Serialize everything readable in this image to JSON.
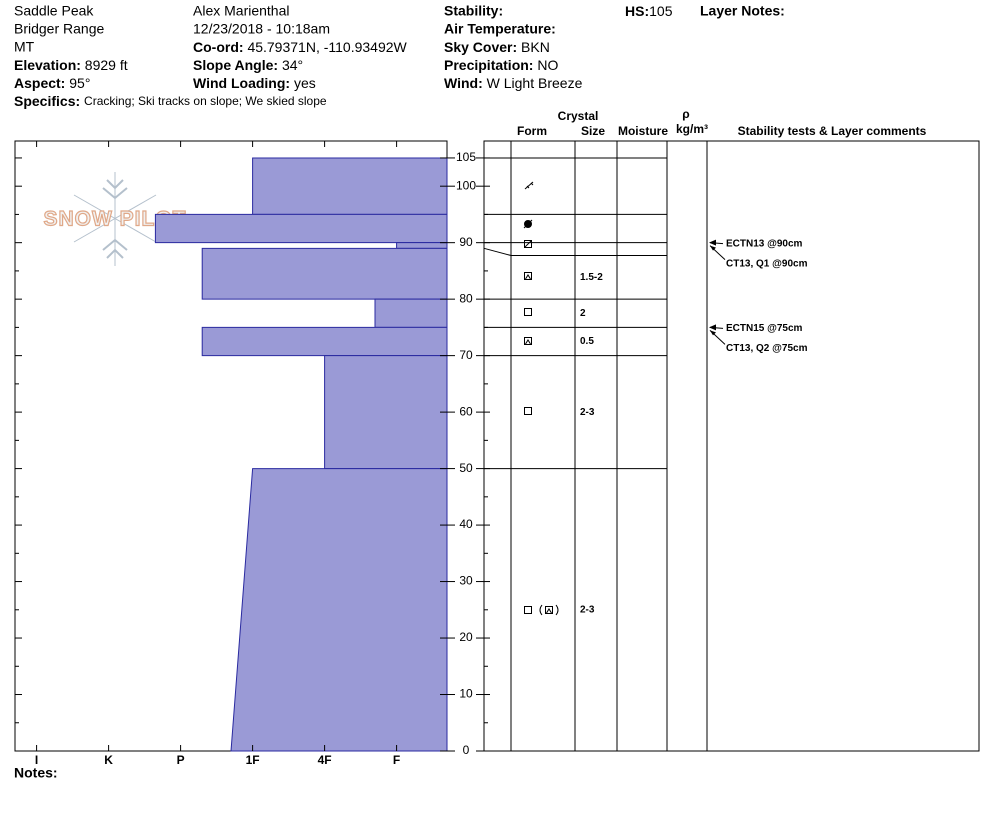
{
  "header": {
    "site": "Saddle Peak",
    "range": "Bridger Range",
    "state": "MT",
    "elevation_label": "Elevation:",
    "elevation": "8929 ft",
    "aspect_label": "Aspect:",
    "aspect": "95°",
    "specifics_label": "Specifics:",
    "specifics": "Cracking;  Ski tracks on slope;  We skied slope",
    "observer": "Alex Marienthal",
    "datetime": "12/23/2018 - 10:18am",
    "coord_label": "Co-ord:",
    "coord": "45.79371N, -110.93492W",
    "slope_label": "Slope Angle:",
    "slope": "34°",
    "wind_loading_label": "Wind Loading:",
    "wind_loading": "yes",
    "stability_label": "Stability:",
    "air_temp_label": "Air Temperature:",
    "sky_label": "Sky Cover:",
    "sky": "BKN",
    "precip_label": "Precipitation:",
    "precip": "NO",
    "wind_label": "Wind:",
    "wind": "W Light Breeze",
    "hs_label": "HS:",
    "hs": 105,
    "layer_notes_label": "Layer Notes:"
  },
  "logo": "SNOW PILOT",
  "table_headers": {
    "crystal": "Crystal",
    "form": "Form",
    "size": "Size",
    "moisture": "Moisture",
    "density_symbol": "ρ",
    "density_unit": "kg/m³",
    "comments": "Stability tests & Layer comments"
  },
  "notes_label": "Notes:",
  "chart_data": {
    "type": "hardness-profile",
    "ylim": [
      0,
      108
    ],
    "yticks": [
      0,
      10,
      20,
      30,
      40,
      50,
      60,
      70,
      80,
      90,
      100,
      105
    ],
    "yticks_minor": [
      5,
      15,
      25,
      35,
      45,
      55,
      65,
      75,
      85,
      95
    ],
    "xlim": [
      6.3,
      0.3
    ],
    "xticks": [
      {
        "value": 6,
        "label": "I"
      },
      {
        "value": 5,
        "label": "K"
      },
      {
        "value": 4,
        "label": "P"
      },
      {
        "value": 3,
        "label": "1F"
      },
      {
        "value": 2,
        "label": "4F"
      },
      {
        "value": 1,
        "label": "F"
      }
    ],
    "color": "#9a9ad6",
    "layers": [
      {
        "top": 105,
        "bottom": 95,
        "hardness_top": 3.0,
        "hardness_bottom": 3.0,
        "size": null
      },
      {
        "top": 95,
        "bottom": 90,
        "hardness_top": 4.35,
        "hardness_bottom": 4.35,
        "size": null
      },
      {
        "top": 90,
        "bottom": 89,
        "hardness_top": 1.0,
        "hardness_bottom": 1.0,
        "size": null
      },
      {
        "top": 89,
        "bottom": 80,
        "hardness_top": 3.7,
        "hardness_bottom": 3.7,
        "size": "1.5-2"
      },
      {
        "top": 80,
        "bottom": 75,
        "hardness_top": 1.3,
        "hardness_bottom": 1.3,
        "size": "2"
      },
      {
        "top": 75,
        "bottom": 70,
        "hardness_top": 3.7,
        "hardness_bottom": 3.7,
        "size": "0.5"
      },
      {
        "top": 70,
        "bottom": 50,
        "hardness_top": 2.0,
        "hardness_bottom": 2.0,
        "size": "2-3"
      },
      {
        "top": 50,
        "bottom": 0,
        "hardness_top": 3.0,
        "hardness_bottom": 3.3,
        "size": "2-3"
      }
    ],
    "tests": [
      {
        "text": "ECTN13 @90cm",
        "depth": 90
      },
      {
        "text": "CT13, Q1 @90cm",
        "depth": 90
      },
      {
        "text": "ECTN15 @75cm",
        "depth": 75
      },
      {
        "text": "CT13, Q2 @75cm",
        "depth": 75
      }
    ]
  }
}
